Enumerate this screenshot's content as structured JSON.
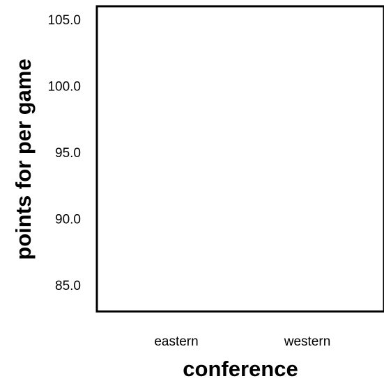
{
  "chart_data": {
    "type": "bar",
    "categories": [
      "eastern",
      "western"
    ],
    "series": [
      {
        "values": [
          null,
          null
        ]
      }
    ],
    "xlabel": "conference",
    "ylabel": "points for per game",
    "ylim": [
      83.0,
      106.0
    ],
    "yticks": [
      "85.0",
      "90.0",
      "95.0",
      "100.0",
      "105.0"
    ],
    "grid": false,
    "legend": "none",
    "colors": {
      "axis": "#000000",
      "background": "#ffffff"
    }
  }
}
